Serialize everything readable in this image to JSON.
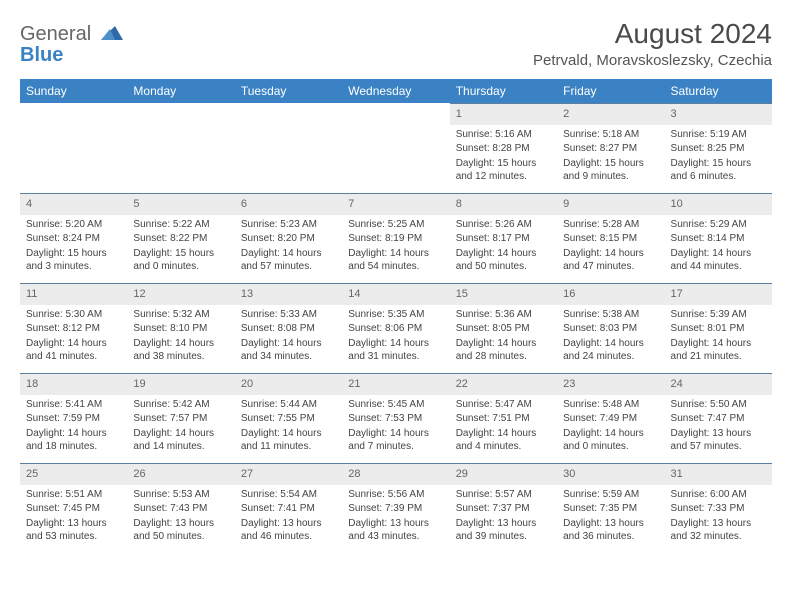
{
  "logo": {
    "line1": "General",
    "line2": "Blue"
  },
  "title": "August 2024",
  "location": "Petrvald, Moravskoslezsky, Czechia",
  "colors": {
    "header_bg": "#3b82c4",
    "header_text": "#ffffff",
    "daynum_bg": "#ececec",
    "row_border": "#5a7fa0",
    "text": "#444444",
    "title_text": "#4a4a4a"
  },
  "weekdays": [
    "Sunday",
    "Monday",
    "Tuesday",
    "Wednesday",
    "Thursday",
    "Friday",
    "Saturday"
  ],
  "weeks": [
    [
      null,
      null,
      null,
      null,
      {
        "n": "1",
        "sr": "5:16 AM",
        "ss": "8:28 PM",
        "dl": "15 hours and 12 minutes."
      },
      {
        "n": "2",
        "sr": "5:18 AM",
        "ss": "8:27 PM",
        "dl": "15 hours and 9 minutes."
      },
      {
        "n": "3",
        "sr": "5:19 AM",
        "ss": "8:25 PM",
        "dl": "15 hours and 6 minutes."
      }
    ],
    [
      {
        "n": "4",
        "sr": "5:20 AM",
        "ss": "8:24 PM",
        "dl": "15 hours and 3 minutes."
      },
      {
        "n": "5",
        "sr": "5:22 AM",
        "ss": "8:22 PM",
        "dl": "15 hours and 0 minutes."
      },
      {
        "n": "6",
        "sr": "5:23 AM",
        "ss": "8:20 PM",
        "dl": "14 hours and 57 minutes."
      },
      {
        "n": "7",
        "sr": "5:25 AM",
        "ss": "8:19 PM",
        "dl": "14 hours and 54 minutes."
      },
      {
        "n": "8",
        "sr": "5:26 AM",
        "ss": "8:17 PM",
        "dl": "14 hours and 50 minutes."
      },
      {
        "n": "9",
        "sr": "5:28 AM",
        "ss": "8:15 PM",
        "dl": "14 hours and 47 minutes."
      },
      {
        "n": "10",
        "sr": "5:29 AM",
        "ss": "8:14 PM",
        "dl": "14 hours and 44 minutes."
      }
    ],
    [
      {
        "n": "11",
        "sr": "5:30 AM",
        "ss": "8:12 PM",
        "dl": "14 hours and 41 minutes."
      },
      {
        "n": "12",
        "sr": "5:32 AM",
        "ss": "8:10 PM",
        "dl": "14 hours and 38 minutes."
      },
      {
        "n": "13",
        "sr": "5:33 AM",
        "ss": "8:08 PM",
        "dl": "14 hours and 34 minutes."
      },
      {
        "n": "14",
        "sr": "5:35 AM",
        "ss": "8:06 PM",
        "dl": "14 hours and 31 minutes."
      },
      {
        "n": "15",
        "sr": "5:36 AM",
        "ss": "8:05 PM",
        "dl": "14 hours and 28 minutes."
      },
      {
        "n": "16",
        "sr": "5:38 AM",
        "ss": "8:03 PM",
        "dl": "14 hours and 24 minutes."
      },
      {
        "n": "17",
        "sr": "5:39 AM",
        "ss": "8:01 PM",
        "dl": "14 hours and 21 minutes."
      }
    ],
    [
      {
        "n": "18",
        "sr": "5:41 AM",
        "ss": "7:59 PM",
        "dl": "14 hours and 18 minutes."
      },
      {
        "n": "19",
        "sr": "5:42 AM",
        "ss": "7:57 PM",
        "dl": "14 hours and 14 minutes."
      },
      {
        "n": "20",
        "sr": "5:44 AM",
        "ss": "7:55 PM",
        "dl": "14 hours and 11 minutes."
      },
      {
        "n": "21",
        "sr": "5:45 AM",
        "ss": "7:53 PM",
        "dl": "14 hours and 7 minutes."
      },
      {
        "n": "22",
        "sr": "5:47 AM",
        "ss": "7:51 PM",
        "dl": "14 hours and 4 minutes."
      },
      {
        "n": "23",
        "sr": "5:48 AM",
        "ss": "7:49 PM",
        "dl": "14 hours and 0 minutes."
      },
      {
        "n": "24",
        "sr": "5:50 AM",
        "ss": "7:47 PM",
        "dl": "13 hours and 57 minutes."
      }
    ],
    [
      {
        "n": "25",
        "sr": "5:51 AM",
        "ss": "7:45 PM",
        "dl": "13 hours and 53 minutes."
      },
      {
        "n": "26",
        "sr": "5:53 AM",
        "ss": "7:43 PM",
        "dl": "13 hours and 50 minutes."
      },
      {
        "n": "27",
        "sr": "5:54 AM",
        "ss": "7:41 PM",
        "dl": "13 hours and 46 minutes."
      },
      {
        "n": "28",
        "sr": "5:56 AM",
        "ss": "7:39 PM",
        "dl": "13 hours and 43 minutes."
      },
      {
        "n": "29",
        "sr": "5:57 AM",
        "ss": "7:37 PM",
        "dl": "13 hours and 39 minutes."
      },
      {
        "n": "30",
        "sr": "5:59 AM",
        "ss": "7:35 PM",
        "dl": "13 hours and 36 minutes."
      },
      {
        "n": "31",
        "sr": "6:00 AM",
        "ss": "7:33 PM",
        "dl": "13 hours and 32 minutes."
      }
    ]
  ],
  "labels": {
    "sunrise": "Sunrise:",
    "sunset": "Sunset:",
    "daylight": "Daylight:"
  }
}
